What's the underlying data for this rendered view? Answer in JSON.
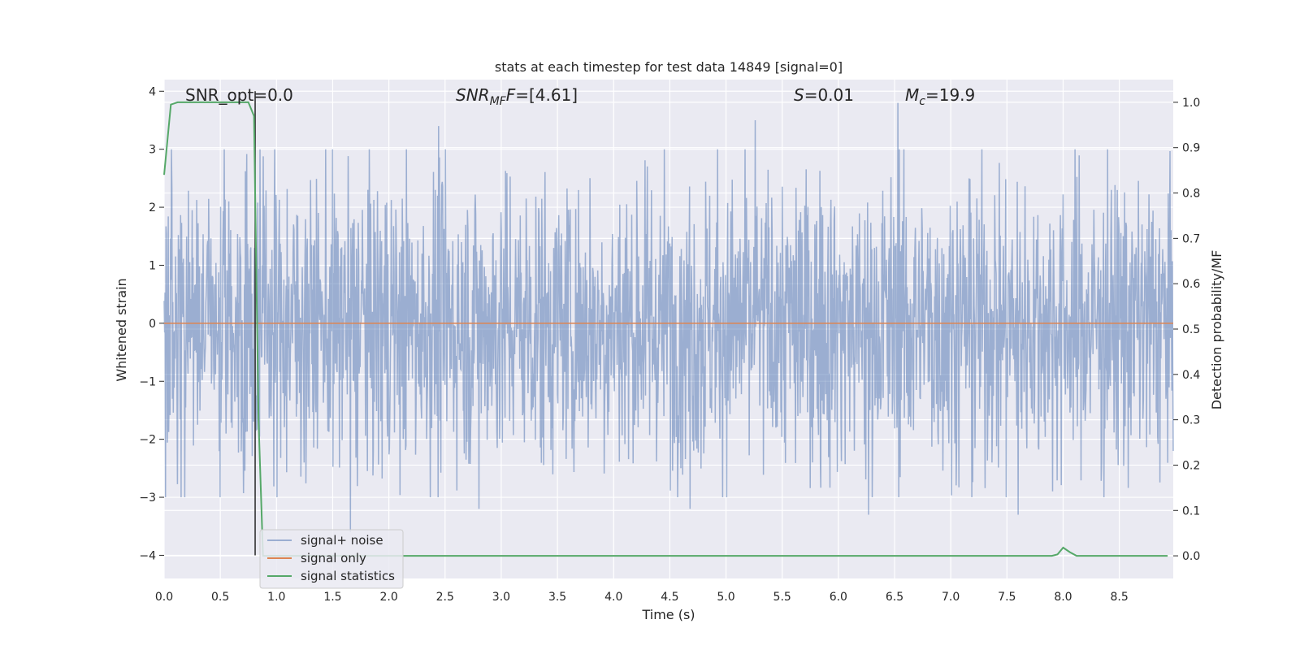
{
  "chart_data": {
    "type": "line",
    "title": "stats at each timestep for test data 14849 [signal=0]",
    "xlabel": "Time (s)",
    "ylabel": "Whitened strain",
    "y2label": "Detection probability/MF",
    "xlim": [
      0.0,
      8.98
    ],
    "ylim": [
      -4.4,
      4.2
    ],
    "y2lim": [
      -0.05,
      1.05
    ],
    "x_ticks": [
      0.0,
      0.5,
      1.0,
      1.5,
      2.0,
      2.5,
      3.0,
      3.5,
      4.0,
      4.5,
      5.0,
      5.5,
      6.0,
      6.5,
      7.0,
      7.5,
      8.0,
      8.5
    ],
    "x_tick_labels": [
      "0.0",
      "0.5",
      "1.0",
      "1.5",
      "2.0",
      "2.5",
      "3.0",
      "3.5",
      "4.0",
      "4.5",
      "5.0",
      "5.5",
      "6.0",
      "6.5",
      "7.0",
      "7.5",
      "8.0",
      "8.5"
    ],
    "y_ticks": [
      4,
      3,
      2,
      1,
      0,
      -1,
      -2,
      -3,
      -4
    ],
    "y_tick_labels": [
      "4",
      "3",
      "2",
      "1",
      "0",
      "−1",
      "−2",
      "−3",
      "−4"
    ],
    "y2_ticks": [
      1.0,
      0.9,
      0.8,
      0.7,
      0.6,
      0.5,
      0.4,
      0.3,
      0.2,
      0.1,
      0.0
    ],
    "y2_tick_labels": [
      "1.0",
      "0.9",
      "0.8",
      "0.7",
      "0.6",
      "0.5",
      "0.4",
      "0.3",
      "0.2",
      "0.1",
      "0.0"
    ],
    "grid": true,
    "legend_position": "lower-left",
    "series": [
      {
        "name": "signal+ noise",
        "color": "#4c72b0",
        "opacity": 0.5,
        "axis": "left",
        "kind": "noise",
        "t_range": [
          0.0,
          8.98
        ],
        "typical_amplitude": 1.5,
        "peaks": [
          [
            2.44,
            3.4
          ],
          [
            5.26,
            3.5
          ],
          [
            6.53,
            3.8
          ],
          [
            1.66,
            -3.6
          ],
          [
            4.68,
            -3.2
          ],
          [
            6.27,
            -3.3
          ],
          [
            7.6,
            -3.3
          ],
          [
            2.8,
            -3.2
          ]
        ]
      },
      {
        "name": "signal only",
        "color": "#dd8452",
        "axis": "left",
        "x": [
          0.0,
          8.98
        ],
        "y": [
          0.0,
          0.0
        ]
      },
      {
        "name": "signal statistics",
        "color": "#55a868",
        "axis": "right",
        "x": [
          0.0,
          0.06,
          0.12,
          0.2,
          0.4,
          0.6,
          0.75,
          0.8,
          0.84,
          0.88,
          0.94,
          7.9,
          7.95,
          8.0,
          8.06,
          8.12,
          8.93
        ],
        "y": [
          0.84,
          0.995,
          1.0,
          1.0,
          1.0,
          1.0,
          1.0,
          0.97,
          0.3,
          0.0,
          0.0,
          0.0,
          0.003,
          0.018,
          0.008,
          0.0,
          0.0
        ]
      }
    ],
    "vertical_marker": {
      "x": 0.81,
      "y_range": [
        -4.0,
        4.0
      ],
      "color": "#333333"
    },
    "annotations": {
      "snr_opt": "SNR_opt=0.0",
      "snr_mf_sym": "SNR",
      "snr_mf_sub": "MF",
      "snr_mf_val": "=[4.61]",
      "s_sym": "S",
      "s_val": "=0.01",
      "mc_sym": "M",
      "mc_sub": "c",
      "mc_val": "=19.9"
    }
  }
}
